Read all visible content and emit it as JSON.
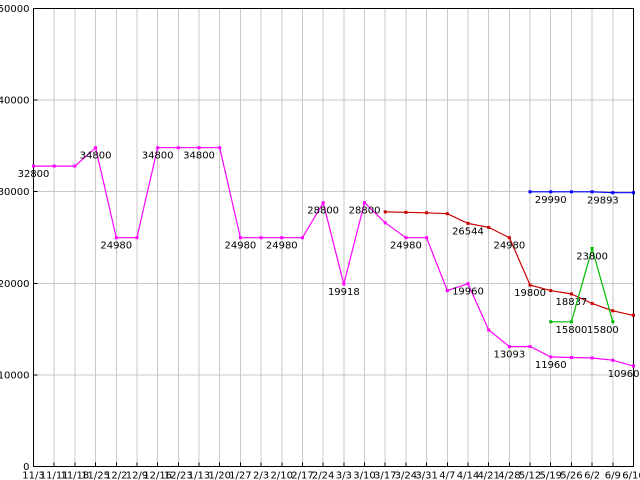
{
  "chart_data": {
    "type": "line",
    "title": "",
    "xlabel": "",
    "ylabel": "",
    "ylim": [
      0,
      50000
    ],
    "y_ticks": [
      0,
      10000,
      20000,
      30000,
      40000,
      50000
    ],
    "grid": true,
    "legend": "none",
    "background_color": "#ffffff",
    "grid_color": "#c8c8c8",
    "axis_color": "#000000",
    "label_color": "#000000",
    "categories": [
      "11/3",
      "11/11",
      "11/18",
      "11/25",
      "12/2",
      "12/9",
      "12/16",
      "12/23",
      "1/13",
      "1/20",
      "1/27",
      "2/3",
      "2/10",
      "2/17",
      "2/24",
      "3/3",
      "3/10",
      "3/17",
      "3/24",
      "3/31",
      "4/7",
      "4/14",
      "4/21",
      "4/28",
      "5/12",
      "5/19",
      "5/26",
      "6/2",
      "6/9",
      "6/16"
    ],
    "series": [
      {
        "name": "series-magenta",
        "color": "#ff00ff",
        "values": [
          32800,
          32800,
          32800,
          34800,
          24980,
          24980,
          34800,
          34800,
          34800,
          34800,
          24980,
          24980,
          24980,
          24980,
          28800,
          19918,
          28800,
          26600,
          24980,
          24980,
          19200,
          19960,
          14900,
          13093,
          13100,
          11960,
          11900,
          11850,
          11600,
          10960
        ],
        "point_labels": {
          "0": "32800",
          "3": "34800",
          "4": "24980",
          "6": "34800",
          "8": "34800",
          "10": "24980",
          "12": "24980",
          "14": "28800",
          "15": "19918",
          "16": "28800",
          "18": "24980",
          "21": "19960",
          "23": "13093",
          "25": "11960",
          "29": "10960"
        }
      },
      {
        "name": "series-red",
        "color": "#cc0000",
        "values": [
          null,
          null,
          null,
          null,
          null,
          null,
          null,
          null,
          null,
          null,
          null,
          null,
          null,
          null,
          null,
          null,
          null,
          27800,
          27750,
          27700,
          27600,
          26544,
          26100,
          24980,
          19800,
          19200,
          18837,
          17800,
          17000,
          16500
        ],
        "point_labels": {
          "21": "26544",
          "23": "24980",
          "24": "19800",
          "26": "18837"
        }
      },
      {
        "name": "series-blue",
        "color": "#0000ff",
        "values": [
          null,
          null,
          null,
          null,
          null,
          null,
          null,
          null,
          null,
          null,
          null,
          null,
          null,
          null,
          null,
          null,
          null,
          null,
          null,
          null,
          null,
          null,
          null,
          null,
          29990,
          29990,
          29990,
          29990,
          29893,
          29893
        ],
        "point_labels": {
          "25": "29990",
          "28": "29893"
        }
      },
      {
        "name": "series-green",
        "color": "#00bb00",
        "values": [
          null,
          null,
          null,
          null,
          null,
          null,
          null,
          null,
          null,
          null,
          null,
          null,
          null,
          null,
          null,
          null,
          null,
          null,
          null,
          null,
          null,
          null,
          null,
          null,
          null,
          15800,
          15800,
          23800,
          15800,
          null
        ],
        "point_labels": {
          "26": "15800",
          "27": "23800",
          "28": "15800"
        }
      }
    ]
  }
}
